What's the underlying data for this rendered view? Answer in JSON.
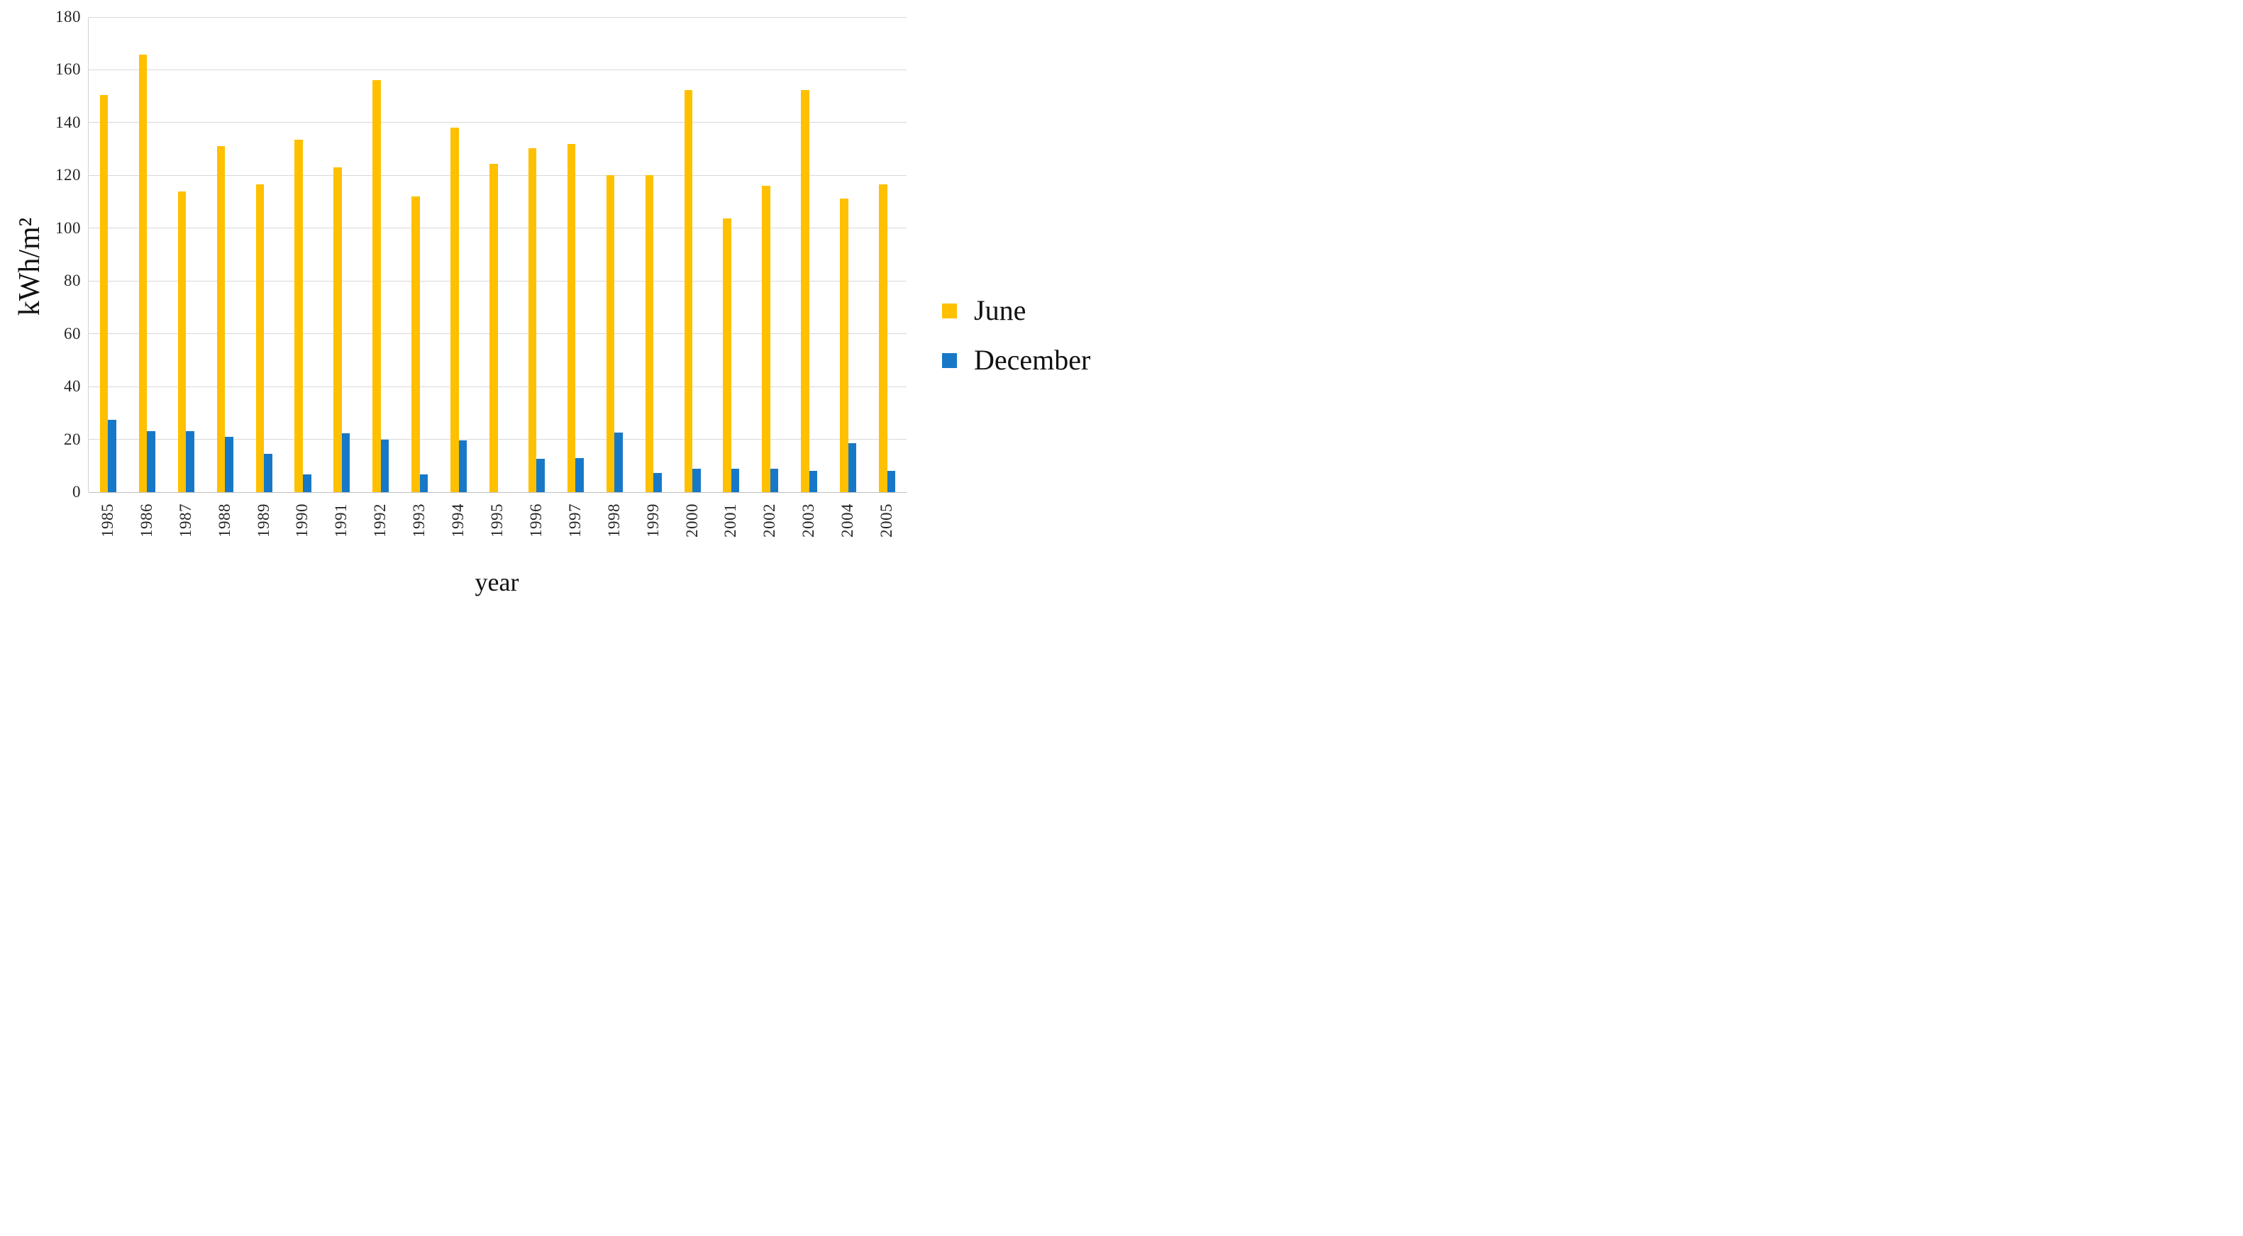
{
  "chart_data": {
    "type": "bar",
    "title": "",
    "categories": [
      "1985",
      "1986",
      "1987",
      "1988",
      "1989",
      "1990",
      "1991",
      "1992",
      "1993",
      "1994",
      "1995",
      "1996",
      "1997",
      "1998",
      "1999",
      "2000",
      "2001",
      "2002",
      "2003",
      "2004",
      "2005"
    ],
    "series": [
      {
        "name": "June",
        "color": "#FFC000",
        "values": [
          150.4,
          165.9,
          114.0,
          131.2,
          116.6,
          133.5,
          123.0,
          156.0,
          112.0,
          138.2,
          124.3,
          130.3,
          131.8,
          120.2,
          120.2,
          152.3,
          103.7,
          116.0,
          152.3,
          111.2,
          116.5
        ]
      },
      {
        "name": "December",
        "color": "#1878C8",
        "values": [
          27.3,
          23.0,
          23.0,
          21.0,
          14.5,
          6.6,
          22.4,
          20.0,
          6.6,
          19.5,
          0,
          12.7,
          12.8,
          22.5,
          7.3,
          8.8,
          8.8,
          8.8,
          8.2,
          18.5,
          8.2
        ]
      }
    ],
    "xlabel": "year",
    "ylabel": "kWh/m²",
    "ylim": [
      0,
      180
    ],
    "ytick_step": 20,
    "grid": true,
    "legend_position": "right"
  },
  "colors": {
    "gridline": "#d9d9d9",
    "axis_line": "#bfbfbf",
    "background": "#ffffff",
    "text": "#1a1a1a"
  }
}
